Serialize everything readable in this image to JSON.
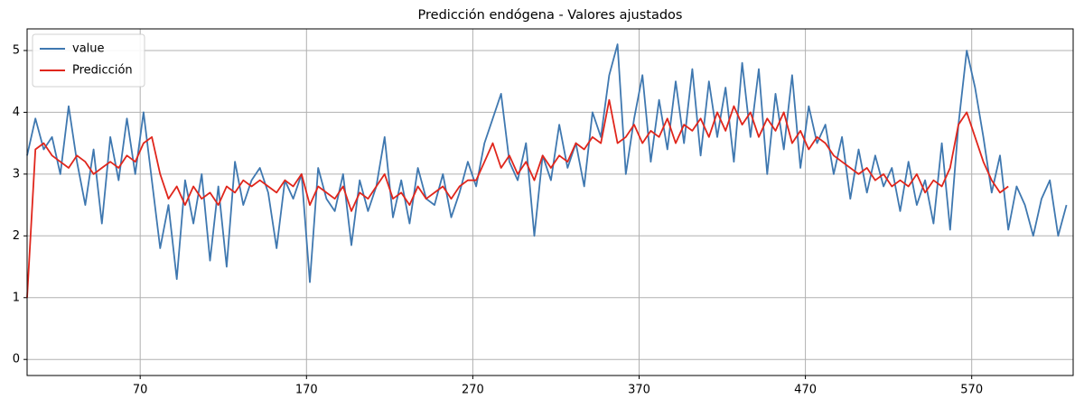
{
  "chart_data": {
    "type": "line",
    "title": "Predicción endógena - Valores ajustados",
    "x": [
      2,
      7,
      12,
      17,
      22,
      27,
      32,
      37,
      42,
      47,
      52,
      57,
      62,
      67,
      72,
      77,
      82,
      87,
      92,
      97,
      102,
      107,
      112,
      117,
      122,
      127,
      132,
      137,
      142,
      147,
      152,
      157,
      162,
      167,
      172,
      177,
      182,
      187,
      192,
      197,
      202,
      207,
      212,
      217,
      222,
      227,
      232,
      237,
      242,
      247,
      252,
      257,
      262,
      267,
      272,
      277,
      282,
      287,
      292,
      297,
      302,
      307,
      312,
      317,
      322,
      327,
      332,
      337,
      342,
      347,
      352,
      357,
      362,
      367,
      372,
      377,
      382,
      387,
      392,
      397,
      402,
      407,
      412,
      417,
      422,
      427,
      432,
      437,
      442,
      447,
      452,
      457,
      462,
      467,
      472,
      477,
      482,
      487,
      492,
      497,
      502,
      507,
      512,
      517,
      522,
      527,
      532,
      537,
      542,
      547,
      552,
      557,
      562,
      567,
      572,
      577,
      582,
      587,
      592,
      597,
      602,
      607,
      612,
      617,
      622,
      627
    ],
    "series": [
      {
        "name": "value",
        "color": "#3f78b0",
        "values": [
          3.3,
          3.9,
          3.4,
          3.6,
          3.0,
          4.1,
          3.2,
          2.5,
          3.4,
          2.2,
          3.6,
          2.9,
          3.9,
          3.0,
          4.0,
          2.9,
          1.8,
          2.5,
          1.3,
          2.9,
          2.2,
          3.0,
          1.6,
          2.8,
          1.5,
          3.2,
          2.5,
          2.9,
          3.1,
          2.7,
          1.8,
          2.9,
          2.6,
          3.0,
          1.25,
          3.1,
          2.6,
          2.4,
          3.0,
          1.85,
          2.9,
          2.4,
          2.8,
          3.6,
          2.3,
          2.9,
          2.2,
          3.1,
          2.6,
          2.5,
          3.0,
          2.3,
          2.7,
          3.2,
          2.8,
          3.5,
          3.9,
          4.3,
          3.2,
          2.9,
          3.5,
          2.0,
          3.3,
          2.9,
          3.8,
          3.1,
          3.5,
          2.8,
          4.0,
          3.6,
          4.6,
          5.1,
          3.0,
          3.9,
          4.6,
          3.2,
          4.2,
          3.4,
          4.5,
          3.5,
          4.7,
          3.3,
          4.5,
          3.6,
          4.4,
          3.2,
          4.8,
          3.6,
          4.7,
          3.0,
          4.3,
          3.4,
          4.6,
          3.1,
          4.1,
          3.5,
          3.8,
          3.0,
          3.6,
          2.6,
          3.4,
          2.7,
          3.3,
          2.8,
          3.1,
          2.4,
          3.2,
          2.5,
          2.9,
          2.2,
          3.5,
          2.1,
          3.8,
          5.0,
          4.4,
          3.6,
          2.7,
          3.3,
          2.1,
          2.8,
          2.5,
          2.0,
          2.6,
          2.9,
          2.0,
          2.5
        ]
      },
      {
        "name": "Predicción",
        "color": "#e0261c",
        "values": [
          1.0,
          3.4,
          3.5,
          3.3,
          3.2,
          3.1,
          3.3,
          3.2,
          3.0,
          3.1,
          3.2,
          3.1,
          3.3,
          3.2,
          3.5,
          3.6,
          3.0,
          2.6,
          2.8,
          2.5,
          2.8,
          2.6,
          2.7,
          2.5,
          2.8,
          2.7,
          2.9,
          2.8,
          2.9,
          2.8,
          2.7,
          2.9,
          2.8,
          3.0,
          2.5,
          2.8,
          2.7,
          2.6,
          2.8,
          2.4,
          2.7,
          2.6,
          2.8,
          3.0,
          2.6,
          2.7,
          2.5,
          2.8,
          2.6,
          2.7,
          2.8,
          2.6,
          2.8,
          2.9,
          2.9,
          3.2,
          3.5,
          3.1,
          3.3,
          3.0,
          3.2,
          2.9,
          3.3,
          3.1,
          3.3,
          3.2,
          3.5,
          3.4,
          3.6,
          3.5,
          4.2,
          3.5,
          3.6,
          3.8,
          3.5,
          3.7,
          3.6,
          3.9,
          3.5,
          3.8,
          3.7,
          3.9,
          3.6,
          4.0,
          3.7,
          4.1,
          3.8,
          4.0,
          3.6,
          3.9,
          3.7,
          4.0,
          3.5,
          3.7,
          3.4,
          3.6,
          3.5,
          3.3,
          3.2,
          3.1,
          3.0,
          3.1,
          2.9,
          3.0,
          2.8,
          2.9,
          2.8,
          3.0,
          2.7,
          2.9,
          2.8,
          3.1,
          3.8,
          4.0,
          3.6,
          3.2,
          2.9,
          2.7,
          2.8,
          null,
          null,
          null,
          null,
          null,
          null,
          null
        ]
      }
    ],
    "xlim": [
      2,
      631
    ],
    "ylim": [
      -0.26,
      5.35
    ],
    "xticks": [
      70,
      170,
      270,
      370,
      470,
      570
    ],
    "yticks": [
      0,
      1,
      2,
      3,
      4,
      5
    ],
    "grid": true,
    "legend": "upper left"
  }
}
